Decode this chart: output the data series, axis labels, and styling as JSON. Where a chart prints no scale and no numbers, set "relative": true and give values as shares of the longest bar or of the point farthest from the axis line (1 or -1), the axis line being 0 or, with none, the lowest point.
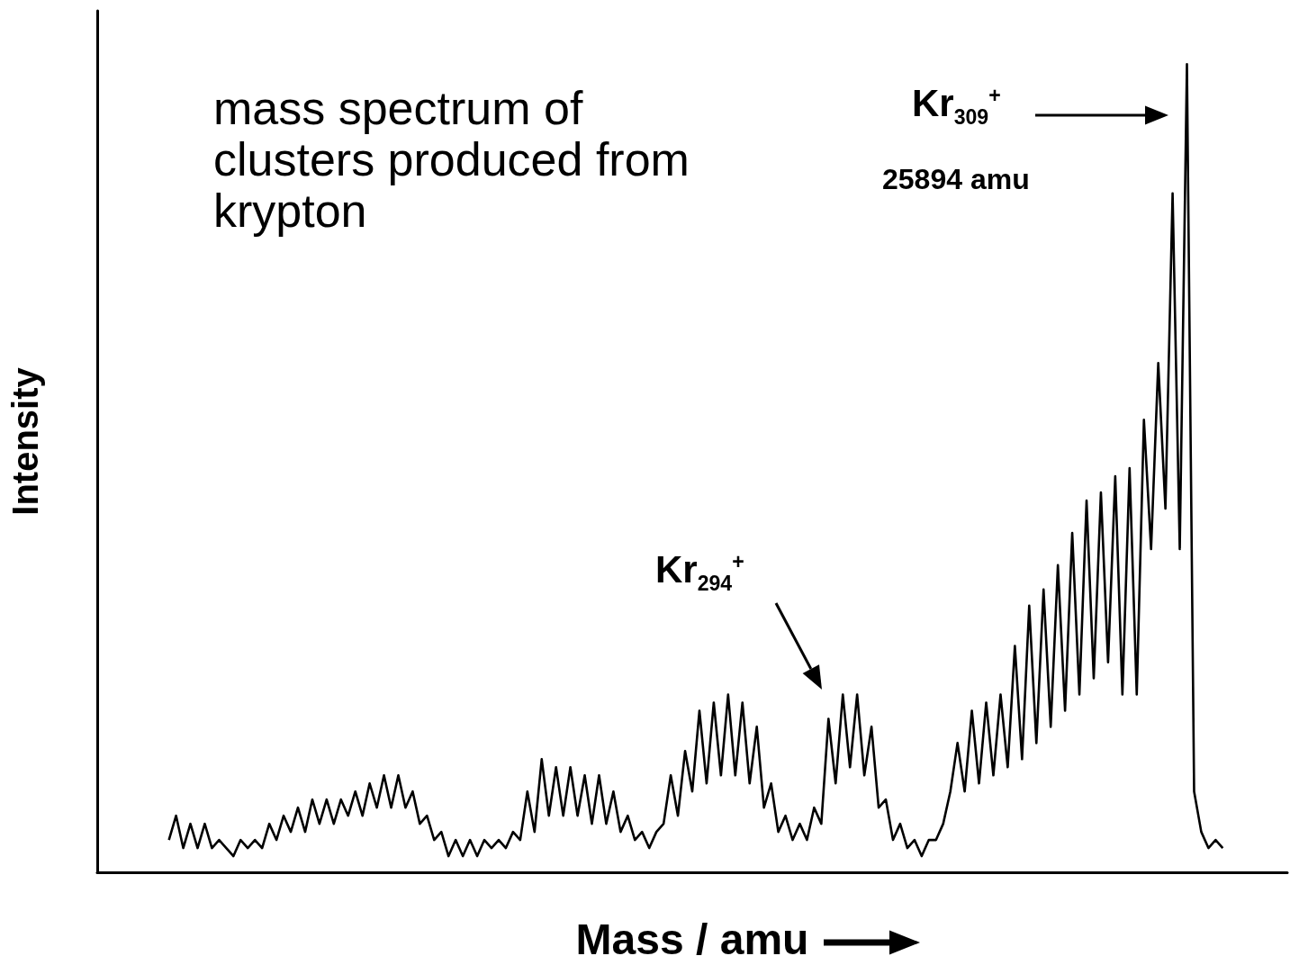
{
  "chart_data": {
    "type": "line",
    "relative": true,
    "xlabel": "Mass / amu",
    "ylabel": "Intensity",
    "marker": "none",
    "annotations": [
      "mass spectrum of clusters produced from krypton",
      "Kr$_{309}$$^{+}$",
      "25894 amu",
      "Kr$_{294}$$^{+}$"
    ],
    "categories": [
      null,
      null,
      null,
      null,
      null,
      null,
      null,
      null,
      null,
      null,
      null,
      null,
      null,
      null,
      null,
      null,
      null,
      null,
      null,
      null,
      null,
      null,
      null,
      null,
      null,
      null,
      null,
      null,
      null,
      null,
      null,
      null,
      null,
      null,
      null,
      null,
      null,
      null,
      null,
      null,
      null,
      null,
      null,
      null,
      null,
      null,
      null,
      null,
      null,
      null,
      null,
      null,
      null,
      null,
      null,
      null,
      null,
      null,
      null,
      null,
      null,
      null,
      null,
      null,
      null,
      null,
      null,
      null,
      null,
      null,
      null,
      null,
      null,
      null,
      null,
      null,
      null,
      null,
      null,
      null,
      null,
      null,
      null,
      null,
      null,
      null,
      null,
      null,
      null,
      null,
      null,
      null,
      null,
      null,
      null,
      null,
      null,
      null,
      null,
      null,
      null,
      null,
      null,
      null,
      null,
      null,
      null,
      null,
      null,
      null,
      null,
      null,
      null,
      null,
      null,
      null,
      null,
      null,
      null,
      null,
      null,
      null,
      null,
      null,
      null,
      null,
      null,
      null,
      null,
      null,
      null,
      null,
      null,
      null,
      null,
      null,
      null,
      null,
      null,
      null,
      null,
      null,
      null,
      null,
      null,
      null,
      null,
      null,
      null,
      null,
      null,
      null,
      null,
      null,
      null,
      null,
      null,
      null,
      null,
      null,
      null,
      null,
      null,
      null,
      null,
      null,
      null
    ],
    "series": [
      {
        "color": "#000000",
        "values": [
          null,
          null,
          null,
          null,
          null,
          null,
          null,
          null,
          null,
          null,
          0.04,
          0.07,
          0.03,
          0.06,
          0.03,
          0.06,
          0.03,
          0.04,
          0.03,
          0.02,
          0.04,
          0.03,
          0.04,
          0.03,
          0.06,
          0.04,
          0.07,
          0.05,
          0.08,
          0.05,
          0.09,
          0.06,
          0.09,
          0.06,
          0.09,
          0.07,
          0.1,
          0.07,
          0.11,
          0.08,
          0.12,
          0.08,
          0.12,
          0.08,
          0.1,
          0.06,
          0.07,
          0.04,
          0.05,
          0.02,
          0.04,
          0.02,
          0.04,
          0.02,
          0.04,
          0.03,
          0.04,
          0.03,
          0.05,
          0.04,
          0.1,
          0.05,
          0.14,
          0.07,
          0.13,
          0.07,
          0.13,
          0.07,
          0.12,
          0.06,
          0.12,
          0.06,
          0.1,
          0.05,
          0.07,
          0.04,
          0.05,
          0.03,
          0.05,
          0.06,
          0.12,
          0.07,
          0.15,
          0.1,
          0.2,
          0.11,
          0.21,
          0.12,
          0.22,
          0.12,
          0.21,
          0.11,
          0.18,
          0.08,
          0.11,
          0.05,
          0.07,
          0.04,
          0.06,
          0.04,
          0.08,
          0.06,
          0.19,
          0.11,
          0.22,
          0.13,
          0.22,
          0.12,
          0.18,
          0.08,
          0.09,
          0.04,
          0.06,
          0.03,
          0.04,
          0.02,
          0.04,
          0.04,
          0.06,
          0.1,
          0.16,
          0.1,
          0.2,
          0.11,
          0.21,
          0.12,
          0.22,
          0.13,
          0.28,
          0.14,
          0.33,
          0.16,
          0.35,
          0.18,
          0.38,
          0.2,
          0.42,
          0.22,
          0.46,
          0.24,
          0.47,
          0.26,
          0.49,
          0.22,
          0.5,
          0.22,
          0.56,
          0.4,
          0.63,
          0.45,
          0.84,
          0.4,
          1.0,
          0.1,
          0.05,
          0.03,
          0.04,
          0.03,
          null,
          null,
          null,
          null,
          null,
          null,
          null,
          null,
          null
        ]
      }
    ]
  }
}
